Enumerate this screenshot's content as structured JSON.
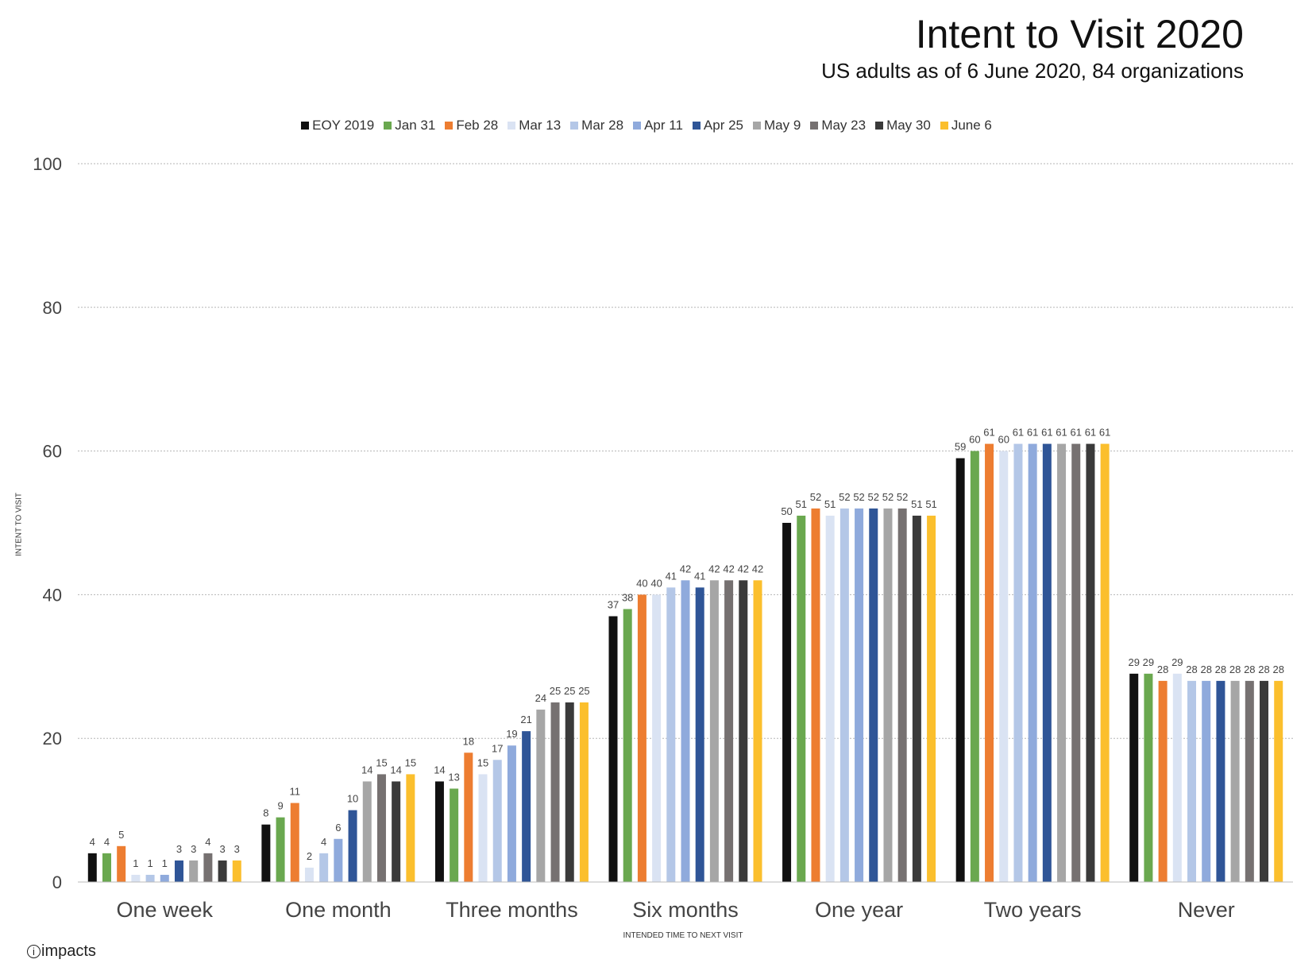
{
  "title": "Intent to Visit 2020",
  "subtitle": "US adults as of 6 June 2020, 84 organizations",
  "logo_text": "impacts",
  "chart_data": {
    "type": "bar",
    "title": "Intent to Visit 2020",
    "subtitle": "US adults as of 6 June 2020, 84 organizations",
    "xlabel": "INTENDED TIME TO NEXT VISIT",
    "ylabel": "INTENT TO VISIT",
    "ylim": [
      0,
      100
    ],
    "yticks": [
      0,
      20,
      40,
      60,
      80,
      100
    ],
    "grid": true,
    "legend_position": "top",
    "categories": [
      "One week",
      "One month",
      "Three months",
      "Six months",
      "One year",
      "Two years",
      "Never"
    ],
    "series": [
      {
        "name": "EOY 2019",
        "color": "#111111",
        "values": [
          4,
          8,
          14,
          37,
          50,
          59,
          29
        ]
      },
      {
        "name": "Jan 31",
        "color": "#6aa84f",
        "values": [
          4,
          9,
          13,
          38,
          51,
          60,
          29
        ]
      },
      {
        "name": "Feb 28",
        "color": "#ed7d31",
        "values": [
          5,
          11,
          18,
          40,
          52,
          61,
          28
        ]
      },
      {
        "name": "Mar 13",
        "color": "#dae3f3",
        "values": [
          1,
          2,
          15,
          40,
          51,
          60,
          29
        ]
      },
      {
        "name": "Mar 28",
        "color": "#b4c7e7",
        "values": [
          1,
          4,
          17,
          41,
          52,
          61,
          28
        ]
      },
      {
        "name": "Apr 11",
        "color": "#8faadc",
        "values": [
          1,
          6,
          19,
          42,
          52,
          61,
          28
        ]
      },
      {
        "name": "Apr 25",
        "color": "#2f5597",
        "values": [
          3,
          10,
          21,
          41,
          52,
          61,
          28
        ]
      },
      {
        "name": "May 9",
        "color": "#a6a6a6",
        "values": [
          3,
          14,
          24,
          42,
          52,
          61,
          28
        ]
      },
      {
        "name": "May 23",
        "color": "#767171",
        "values": [
          4,
          15,
          25,
          42,
          52,
          61,
          28
        ]
      },
      {
        "name": "May 30",
        "color": "#3a3a3a",
        "values": [
          3,
          14,
          25,
          42,
          51,
          61,
          28
        ]
      },
      {
        "name": "June 6",
        "color": "#fbbf2d",
        "values": [
          3,
          15,
          25,
          42,
          51,
          61,
          28
        ]
      }
    ]
  }
}
